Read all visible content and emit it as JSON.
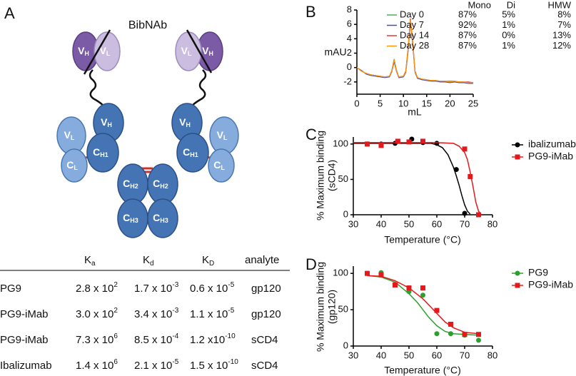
{
  "figure": {
    "panel_labels": [
      "A",
      "B",
      "C",
      "D"
    ]
  },
  "diagram": {
    "title": "BibNAb",
    "nodes": [
      {
        "main": "V",
        "sub": "H"
      },
      {
        "main": "V",
        "sub": "L"
      },
      {
        "main": "V",
        "sub": "L"
      },
      {
        "main": "V",
        "sub": "H"
      },
      {
        "main": "V",
        "sub": "H"
      },
      {
        "main": "V",
        "sub": "L"
      },
      {
        "main": "C",
        "sub": "H1"
      },
      {
        "main": "C",
        "sub": "L"
      },
      {
        "main": "V",
        "sub": "H"
      },
      {
        "main": "V",
        "sub": "L"
      },
      {
        "main": "C",
        "sub": "H1"
      },
      {
        "main": "C",
        "sub": "L"
      },
      {
        "main": "C",
        "sub": "H2"
      },
      {
        "main": "C",
        "sub": "H2"
      },
      {
        "main": "C",
        "sub": "H3"
      },
      {
        "main": "C",
        "sub": "H3"
      }
    ]
  },
  "table": {
    "header": [
      {
        "main": "K",
        "sub": "a"
      },
      {
        "main": "K",
        "sub": "d"
      },
      {
        "main": "K",
        "sub": "D"
      },
      {
        "main": "analyte"
      }
    ],
    "rows": [
      [
        "PG9",
        {
          "base": "2.8 x 10",
          "exp": "2"
        },
        {
          "base": "1.7 x 10",
          "exp": "-3"
        },
        {
          "base": "0.6 x 10",
          "exp": "-5"
        },
        "gp120"
      ],
      [
        "PG9-iMab",
        {
          "base": "3.0 x 10",
          "exp": "2"
        },
        {
          "base": "3.4 x 10",
          "exp": "-3"
        },
        {
          "base": "1.1 x 10",
          "exp": "-5"
        },
        "gp120"
      ],
      [
        "PG9-iMab",
        {
          "base": "7.3 x 10",
          "exp": "6"
        },
        {
          "base": "8.5 x 10",
          "exp": "-4"
        },
        {
          "base": "1.2 x10",
          "exp": "-10"
        },
        "sCD4"
      ],
      [
        "Ibalizumab",
        {
          "base": "1.4 x 10",
          "exp": "6"
        },
        {
          "base": "2.1 x 10",
          "exp": "-5"
        },
        {
          "base": "1.5 x 10",
          "exp": "-10"
        },
        "sCD4"
      ]
    ]
  },
  "chart_data": [
    {
      "type": "line",
      "ylabel": "mAU",
      "xlabel": "mL",
      "x": [
        0,
        1,
        2,
        3,
        4,
        5,
        6,
        7,
        7.5,
        8,
        8.5,
        9,
        10,
        10.5,
        11,
        11.5,
        12,
        12.5,
        13,
        14,
        15,
        16,
        17,
        18,
        19,
        20,
        21,
        22,
        23,
        24,
        25
      ],
      "series": [
        {
          "name": "Day 0",
          "color": "#4caf50",
          "values": [
            0,
            -0.5,
            -0.8,
            -1,
            -1.1,
            -1.2,
            -1.3,
            -1.2,
            -0.4,
            1.2,
            -0.3,
            -1.3,
            -1.2,
            -0.5,
            2.5,
            6.5,
            3.5,
            -0.5,
            -1.4,
            -1.6,
            -1.7,
            -1.8,
            -1.8,
            -1.9,
            -1.9,
            -2,
            -1.9,
            -2,
            -2,
            -2.1,
            -2.1
          ]
        },
        {
          "name": "Day 7",
          "color": "#3f51b5",
          "values": [
            0,
            -0.4,
            -0.9,
            -1.1,
            -1.2,
            -1.3,
            -1.4,
            -1.3,
            -0.6,
            0.8,
            -0.5,
            -1.4,
            -1.3,
            -0.7,
            2.2,
            6.3,
            3.2,
            -0.7,
            -1.5,
            -1.7,
            -1.8,
            -1.9,
            -1.9,
            -2,
            -2,
            -2.1,
            -2,
            -2.1,
            -2.1,
            -2.2,
            -2.2
          ]
        },
        {
          "name": "Day 14",
          "color": "#e53935",
          "values": [
            0,
            -0.5,
            -0.8,
            -1,
            -1.1,
            -1.2,
            -1.3,
            -1.2,
            -0.5,
            1.0,
            -0.4,
            -1.3,
            -1.2,
            -0.5,
            2.7,
            6.8,
            3.6,
            -0.5,
            -1.4,
            -1.6,
            -1.7,
            -1.8,
            -1.8,
            -1.9,
            -1.9,
            -1.9,
            -1.9,
            -2,
            -2,
            -2,
            -2.1
          ]
        },
        {
          "name": "Day 28",
          "color": "#ff9800",
          "values": [
            0,
            -0.5,
            -0.8,
            -1,
            -1.1,
            -1.2,
            -1.3,
            -1.2,
            -0.5,
            1.1,
            -0.4,
            -1.3,
            -1.2,
            -0.6,
            2.6,
            6.6,
            3.4,
            -0.6,
            -1.4,
            -1.6,
            -1.7,
            -1.8,
            -1.8,
            -1.9,
            -1.9,
            -2,
            -1.9,
            -2,
            -2,
            -2.1,
            -2.1
          ]
        }
      ],
      "xlim": [
        0,
        25
      ],
      "xticks": [
        0,
        5,
        10,
        15,
        20,
        25
      ],
      "ylim": [
        -3.7,
        8
      ],
      "yticks": [
        -2,
        0,
        2,
        4,
        6,
        8
      ],
      "legend_table": {
        "columns": [
          "Mono",
          "Di",
          "HMW"
        ],
        "rows": [
          [
            "87%",
            "5%",
            "8%"
          ],
          [
            "92%",
            "1%",
            "7%"
          ],
          [
            "87%",
            "0%",
            "13%"
          ],
          [
            "87%",
            "1%",
            "12%"
          ]
        ]
      }
    },
    {
      "type": "scatter",
      "xlabel": "Temperature (°C)",
      "ylabel": [
        "% Maximum binding",
        "(sCD4)"
      ],
      "series": [
        {
          "name": "ibalizumab",
          "color": "#000000",
          "marker": "circle",
          "x": [
            35,
            40,
            45,
            51,
            55,
            60,
            67,
            70
          ],
          "values": [
            100,
            100,
            101,
            107,
            102,
            101,
            64,
            2
          ],
          "fit": {
            "x": [
              30,
              40,
              50,
              58,
              60,
              62,
              64,
              66,
              67,
              68,
              69,
              70,
              71,
              72
            ],
            "values": [
              101,
              101,
              101,
              101,
              99,
              95,
              85,
              67,
              55,
              42,
              27,
              14,
              5,
              1
            ]
          }
        },
        {
          "name": "PG9-iMab",
          "color": "#e31a1c",
          "marker": "square",
          "x": [
            35,
            40,
            46,
            50,
            55,
            70,
            72,
            75
          ],
          "values": [
            100,
            98,
            104,
            103,
            104,
            93,
            54,
            0
          ],
          "fit": {
            "x": [
              30,
              40,
              50,
              60,
              66,
              68,
              70,
              71,
              72,
              73,
              74,
              75,
              76
            ],
            "values": [
              102,
              102,
              102,
              102,
              101,
              97,
              88,
              78,
              60,
              40,
              18,
              5,
              0
            ]
          }
        }
      ],
      "xlim": [
        30,
        80
      ],
      "xticks": [
        30,
        40,
        50,
        60,
        70,
        80
      ],
      "ylim": [
        0,
        110
      ],
      "yticks": [
        0,
        50,
        100
      ]
    },
    {
      "type": "scatter",
      "xlabel": "Temperature (°C)",
      "ylabel": [
        "% Maximum binding",
        "(gp120)"
      ],
      "series": [
        {
          "name": "PG9",
          "color": "#2ca02c",
          "marker": "circle",
          "x": [
            35,
            40,
            45,
            50,
            55,
            60,
            65,
            70,
            75
          ],
          "values": [
            100,
            101,
            85,
            75,
            70,
            17,
            17,
            15,
            8
          ],
          "fit": {
            "x": [
              35,
              40,
              45,
              50,
              53,
              55,
              57,
              60,
              63,
              66,
              70,
              75
            ],
            "values": [
              97,
              95,
              88,
              72,
              60,
              50,
              40,
              28,
              20,
              17,
              16,
              15
            ]
          }
        },
        {
          "name": "PG9-iMab",
          "color": "#e31a1c",
          "marker": "square",
          "x": [
            35,
            40,
            45,
            50,
            55,
            60,
            65,
            70,
            75
          ],
          "values": [
            100,
            98,
            84,
            80,
            80,
            49,
            30,
            16,
            16
          ],
          "fit": {
            "x": [
              35,
              40,
              45,
              50,
              55,
              58,
              60,
              63,
              66,
              70,
              75
            ],
            "values": [
              97,
              96,
              90,
              80,
              65,
              53,
              45,
              33,
              25,
              19,
              17
            ]
          }
        }
      ],
      "xlim": [
        30,
        80
      ],
      "xticks": [
        30,
        40,
        50,
        60,
        70,
        80
      ],
      "ylim": [
        0,
        110
      ],
      "yticks": [
        0,
        50,
        100
      ]
    }
  ]
}
